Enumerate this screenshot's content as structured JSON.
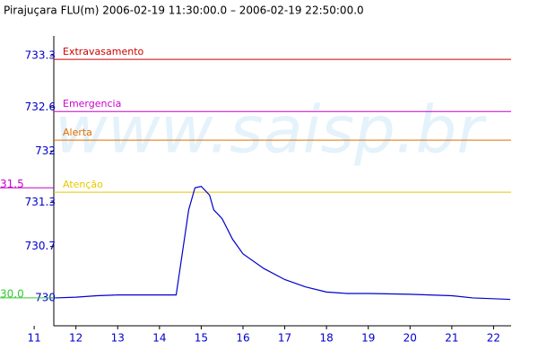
{
  "chart_data": {
    "type": "line",
    "title": "Pirajuçara FLU(m) 2006-02-19 11:30:00.0 – 2006-02-19 22:50:00.0",
    "watermark": "www.saisp.br",
    "x": [
      11.5,
      12,
      12.5,
      13,
      14.4,
      14.7,
      14.85,
      15.0,
      15.2,
      15.3,
      15.5,
      15.75,
      16.0,
      16.5,
      17.0,
      17.5,
      18,
      18.5,
      19,
      20,
      21,
      21.5,
      22.4
    ],
    "series": [
      {
        "color": "#0000cc",
        "values": [
          730.0,
          730.01,
          730.03,
          730.04,
          730.04,
          731.2,
          731.5,
          731.52,
          731.4,
          731.2,
          731.08,
          730.8,
          730.6,
          730.4,
          730.25,
          730.15,
          730.08,
          730.06,
          730.06,
          730.05,
          730.03,
          730.0,
          729.98
        ]
      }
    ],
    "xlim": [
      11.47,
      22.42
    ],
    "xticks": [
      11,
      12,
      13,
      14,
      15,
      16,
      17,
      18,
      19,
      20,
      21,
      22
    ],
    "ylim": [
      729.62,
      733.57
    ],
    "yticks": [
      730.0,
      730.7,
      731.3,
      732.0,
      732.6,
      733.3
    ],
    "thresholds": [
      {
        "label": "Extravasamento",
        "value": 733.25,
        "color": "#cc0000"
      },
      {
        "label": "Emergencia",
        "value": 732.54,
        "color": "#cc00cc"
      },
      {
        "label": "Alerta",
        "value": 732.15,
        "color": "#e07000"
      },
      {
        "label": "Atenção",
        "value": 731.44,
        "color": "#e6c800"
      }
    ],
    "markers": [
      {
        "value": 731.5,
        "label": "31.5",
        "color": "#cc00cc"
      },
      {
        "value": 730.0,
        "label": "30.0",
        "color": "#33cc33"
      }
    ]
  }
}
